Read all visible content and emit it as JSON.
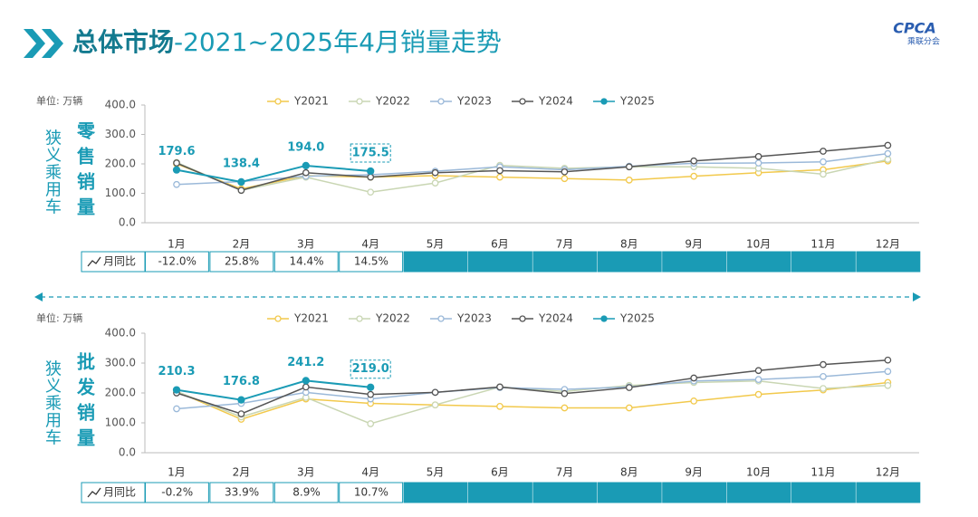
{
  "header": {
    "title_bold": "总体市场",
    "title_rest": "-2021~2025年4月销量走势"
  },
  "logo": {
    "name": "CPCA",
    "sub": "乘联分会"
  },
  "chart_data": [
    {
      "type": "line",
      "unit": "单位: 万辆",
      "segment": "狭义乘用车",
      "metric": "零售销量",
      "categories": [
        "1月",
        "2月",
        "3月",
        "4月",
        "5月",
        "6月",
        "7月",
        "8月",
        "9月",
        "10月",
        "11月",
        "12月"
      ],
      "ylim": [
        0,
        400
      ],
      "yticks": [
        {
          "value": 0,
          "label": "0.0"
        },
        {
          "value": 100,
          "label": "100.0"
        },
        {
          "value": 200,
          "label": "200.0"
        },
        {
          "value": 300,
          "label": "300.0"
        },
        {
          "value": 400,
          "label": "400.0"
        }
      ],
      "series": [
        {
          "name": "Y2021",
          "color": "#f2c94c",
          "values": [
            200,
            115,
            160,
            155,
            160,
            155,
            150,
            145,
            158,
            170,
            180,
            210
          ]
        },
        {
          "name": "Y2022",
          "color": "#c9d6b3",
          "values": [
            205,
            110,
            155,
            104,
            135,
            195,
            185,
            190,
            190,
            185,
            165,
            215
          ]
        },
        {
          "name": "Y2023",
          "color": "#9bb9d9",
          "values": [
            130,
            140,
            158,
            163,
            175,
            190,
            180,
            192,
            202,
            203,
            207,
            235
          ]
        },
        {
          "name": "Y2024",
          "color": "#555555",
          "values": [
            203,
            110,
            170,
            155,
            170,
            177,
            173,
            190,
            210,
            225,
            243,
            263
          ]
        },
        {
          "name": "Y2025",
          "color": "#1a9bb5",
          "values": [
            179.6,
            138.4,
            194.0,
            175.5,
            null,
            null,
            null,
            null,
            null,
            null,
            null,
            null
          ],
          "value_labels": [
            "179.6",
            "138.4",
            "194.0",
            "175.5",
            null,
            null,
            null,
            null,
            null,
            null,
            null,
            null
          ]
        }
      ],
      "yoy": {
        "label": "月同比",
        "values": [
          -12.0,
          25.8,
          14.4,
          14.5
        ],
        "value_labels": [
          "-12.0%",
          "25.8%",
          "14.4%",
          "14.5%"
        ]
      }
    },
    {
      "type": "line",
      "unit": "单位: 万辆",
      "segment": "狭义乘用车",
      "metric": "批发销量",
      "categories": [
        "1月",
        "2月",
        "3月",
        "4月",
        "5月",
        "6月",
        "7月",
        "8月",
        "9月",
        "10月",
        "11月",
        "12月"
      ],
      "ylim": [
        0,
        400
      ],
      "yticks": [
        {
          "value": 0,
          "label": "0.0"
        },
        {
          "value": 100,
          "label": "100.0"
        },
        {
          "value": 200,
          "label": "200.0"
        },
        {
          "value": 300,
          "label": "300.0"
        },
        {
          "value": 400,
          "label": "400.0"
        }
      ],
      "series": [
        {
          "name": "Y2021",
          "color": "#f2c94c",
          "values": [
            205,
            112,
            180,
            165,
            160,
            155,
            150,
            150,
            173,
            195,
            210,
            235
          ]
        },
        {
          "name": "Y2022",
          "color": "#c9d6b3",
          "values": [
            205,
            120,
            185,
            97,
            160,
            220,
            205,
            225,
            235,
            240,
            215,
            225
          ]
        },
        {
          "name": "Y2023",
          "color": "#9bb9d9",
          "values": [
            147,
            165,
            202,
            180,
            202,
            218,
            212,
            220,
            240,
            245,
            255,
            272
          ]
        },
        {
          "name": "Y2024",
          "color": "#555555",
          "values": [
            200,
            130,
            220,
            195,
            202,
            220,
            198,
            218,
            250,
            275,
            295,
            310
          ]
        },
        {
          "name": "Y2025",
          "color": "#1a9bb5",
          "values": [
            210.3,
            176.8,
            241.2,
            219.0,
            null,
            null,
            null,
            null,
            null,
            null,
            null,
            null
          ],
          "value_labels": [
            "210.3",
            "176.8",
            "241.2",
            "219.0",
            null,
            null,
            null,
            null,
            null,
            null,
            null,
            null
          ]
        }
      ],
      "yoy": {
        "label": "月同比",
        "values": [
          -0.2,
          33.9,
          8.9,
          10.7
        ],
        "value_labels": [
          "-0.2%",
          "33.9%",
          "8.9%",
          "10.7%"
        ]
      }
    }
  ]
}
